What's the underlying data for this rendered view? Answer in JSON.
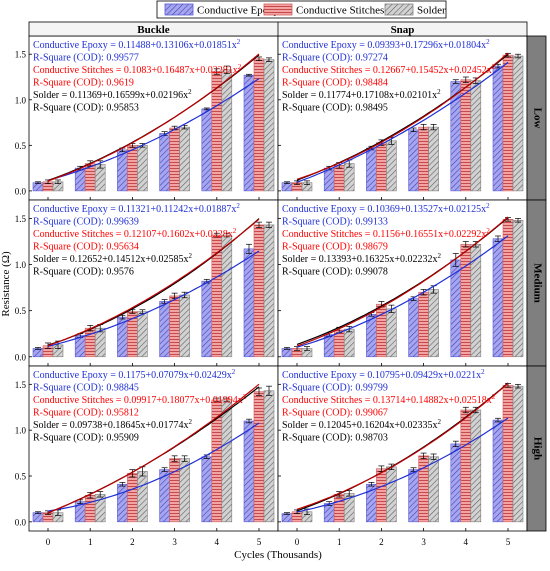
{
  "chart_data": {
    "type": "bar",
    "legend": {
      "placement": "top",
      "entries": [
        {
          "label": "Conductive Epoxy",
          "color": "#8f8fe6",
          "hatch": "diagonal"
        },
        {
          "label": "Conductive Stitches",
          "color": "#ef8e8e",
          "hatch": "horizontal"
        },
        {
          "label": "Solder",
          "color": "#c4c4c4",
          "hatch": "diagonal"
        }
      ]
    },
    "columns": [
      "Buckle",
      "Snap"
    ],
    "rows": [
      "Low",
      "Medium",
      "High"
    ],
    "categories": [
      "0",
      "1",
      "2",
      "3",
      "4",
      "5"
    ],
    "xlabel": "Cycles (Thousands)",
    "ylabel": "Resistance (Ω)",
    "ylim": [
      -0.1,
      1.7
    ],
    "yticks": [
      "0.0",
      "0.5",
      "1.0",
      "1.5"
    ],
    "ytick_values": [
      0,
      0.5,
      1.0,
      1.5
    ],
    "fit_colors": {
      "epoxy": "#1f2fd6",
      "stitches": "#c00000",
      "solder": "#000000"
    },
    "annotation_colors": {
      "epoxy": "#1f2fd6",
      "stitches": "#ff0000",
      "solder": "#000000"
    },
    "panels": [
      {
        "column": "Buckle",
        "row": "Low",
        "series": [
          {
            "name": "Conductive Epoxy",
            "values": [
              0.09,
              0.25,
              0.45,
              0.63,
              0.9,
              1.27
            ],
            "errors": [
              0.01,
              0.02,
              0.02,
              0.02,
              0.01,
              0.01
            ],
            "fit": [
              0.11488,
              0.13106,
              0.01851
            ]
          },
          {
            "name": "Conductive Stitches",
            "values": [
              0.1,
              0.3,
              0.5,
              0.69,
              1.31,
              1.45
            ],
            "errors": [
              0.02,
              0.03,
              0.02,
              0.02,
              0.03,
              0.02
            ],
            "fit": [
              0.1083,
              0.16487,
              0.02281
            ]
          },
          {
            "name": "Solder",
            "values": [
              0.1,
              0.29,
              0.5,
              0.7,
              1.33,
              1.44
            ],
            "errors": [
              0.02,
              0.04,
              0.02,
              0.02,
              0.04,
              0.02
            ],
            "fit": [
              0.11369,
              0.16599,
              0.02196
            ]
          }
        ],
        "equations": [
          {
            "key": "epoxy",
            "eq": "Conductive Epoxy = 0.11488+0.13106x+0.01851x",
            "r2": "R-Square (COD): 0.99577"
          },
          {
            "key": "stitches",
            "eq": "Conductive Stitches = 0.1083+0.16487x+0.02281x",
            "r2": "R-Square (COD): 0.9619"
          },
          {
            "key": "solder",
            "eq": "Solder = 0.11369+0.16599x+0.02196x",
            "r2": "R-Square (COD): 0.95853"
          }
        ]
      },
      {
        "column": "Snap",
        "row": "Low",
        "series": [
          {
            "name": "Conductive Epoxy",
            "values": [
              0.09,
              0.25,
              0.47,
              0.67,
              1.2,
              1.37
            ],
            "errors": [
              0.01,
              0.02,
              0.02,
              0.02,
              0.02,
              0.02
            ],
            "fit": [
              0.09393,
              0.17296,
              0.01804
            ]
          },
          {
            "name": "Conductive Stitches",
            "values": [
              0.09,
              0.28,
              0.53,
              0.7,
              1.22,
              1.49
            ],
            "errors": [
              0.02,
              0.03,
              0.03,
              0.03,
              0.03,
              0.02
            ],
            "fit": [
              0.12667,
              0.15452,
              0.02452
            ]
          },
          {
            "name": "Solder",
            "values": [
              0.09,
              0.3,
              0.55,
              0.7,
              1.21,
              1.48
            ],
            "errors": [
              0.02,
              0.04,
              0.04,
              0.03,
              0.03,
              0.02
            ],
            "fit": [
              0.11774,
              0.17108,
              0.02101
            ]
          }
        ],
        "equations": [
          {
            "key": "epoxy",
            "eq": "Conductive Epoxy = 0.09393+0.17296x+0.01804x",
            "r2": "R-Square (COD): 0.97274"
          },
          {
            "key": "stitches",
            "eq": "Conductive Stitches = 0.12667+0.15452x+0.02452x",
            "r2": "R-Square (COD): 0.98484"
          },
          {
            "key": "solder",
            "eq": "Solder = 0.11774+0.17108x+0.02101x",
            "r2": "R-Square (COD): 0.98495"
          }
        ]
      },
      {
        "column": "Buckle",
        "row": "Medium",
        "series": [
          {
            "name": "Conductive Epoxy",
            "values": [
              0.09,
              0.23,
              0.43,
              0.6,
              0.82,
              1.17
            ],
            "errors": [
              0.01,
              0.02,
              0.02,
              0.02,
              0.02,
              0.05
            ],
            "fit": [
              0.11321,
              0.11242,
              0.01887
            ]
          },
          {
            "name": "Conductive Stitches",
            "values": [
              0.12,
              0.31,
              0.49,
              0.66,
              1.32,
              1.43
            ],
            "errors": [
              0.03,
              0.03,
              0.02,
              0.03,
              0.02,
              0.03
            ],
            "fit": [
              0.12107,
              0.1602,
              0.0228
            ]
          },
          {
            "name": "Solder",
            "values": [
              0.13,
              0.31,
              0.49,
              0.67,
              1.32,
              1.43
            ],
            "errors": [
              0.04,
              0.04,
              0.02,
              0.03,
              0.02,
              0.03
            ],
            "fit": [
              0.12652,
              0.14512,
              0.02585
            ]
          }
        ],
        "equations": [
          {
            "key": "epoxy",
            "eq": "Conductive Epoxy = 0.11321+0.11242x+0.01887x",
            "r2": "R-Square (COD): 0.99639"
          },
          {
            "key": "stitches",
            "eq": "Conductive Stitches = 0.12107+0.1602x+0.0228x",
            "r2": "R-Square (COD): 0.95634"
          },
          {
            "key": "solder",
            "eq": "Solder = 0.12652+0.14512x+0.02585x",
            "r2": "R-Square (COD): 0.9576"
          }
        ]
      },
      {
        "column": "Snap",
        "row": "Medium",
        "series": [
          {
            "name": "Conductive Epoxy",
            "values": [
              0.09,
              0.24,
              0.46,
              0.63,
              1.05,
              1.28
            ],
            "errors": [
              0.01,
              0.02,
              0.02,
              0.02,
              0.07,
              0.03
            ],
            "fit": [
              0.10369,
              0.13527,
              0.02125
            ]
          },
          {
            "name": "Conductive Stitches",
            "values": [
              0.09,
              0.29,
              0.57,
              0.7,
              1.22,
              1.49
            ],
            "errors": [
              0.02,
              0.03,
              0.03,
              0.03,
              0.03,
              0.02
            ],
            "fit": [
              0.1156,
              0.16551,
              0.02292
            ]
          },
          {
            "name": "Solder",
            "values": [
              0.09,
              0.3,
              0.52,
              0.73,
              1.22,
              1.48
            ],
            "errors": [
              0.02,
              0.03,
              0.04,
              0.04,
              0.03,
              0.02
            ],
            "fit": [
              0.13393,
              0.16325,
              0.02232
            ]
          }
        ],
        "equations": [
          {
            "key": "epoxy",
            "eq": "Conductive Epoxy = 0.10369+0.13527x+0.02125x",
            "r2": "R-Square (COD): 0.99133"
          },
          {
            "key": "stitches",
            "eq": "Conductive Stitches = 0.1156+0.16551x+0.02292x",
            "r2": "R-Square (COD): 0.98679"
          },
          {
            "key": "solder",
            "eq": "Solder = 0.13393+0.16325x+0.02232x",
            "r2": "R-Square (COD): 0.99078"
          }
        ]
      },
      {
        "column": "Buckle",
        "row": "High",
        "series": [
          {
            "name": "Conductive Epoxy",
            "values": [
              0.1,
              0.22,
              0.41,
              0.57,
              0.71,
              1.1
            ],
            "errors": [
              0.01,
              0.02,
              0.02,
              0.02,
              0.02,
              0.02
            ],
            "fit": [
              0.1175,
              0.07079,
              0.02429
            ]
          },
          {
            "name": "Conductive Stitches",
            "values": [
              0.1,
              0.29,
              0.53,
              0.69,
              1.33,
              1.42
            ],
            "errors": [
              0.02,
              0.03,
              0.04,
              0.03,
              0.02,
              0.04
            ],
            "fit": [
              0.09917,
              0.18077,
              0.01994
            ]
          },
          {
            "name": "Solder",
            "values": [
              0.1,
              0.3,
              0.55,
              0.69,
              1.33,
              1.43
            ],
            "errors": [
              0.03,
              0.03,
              0.05,
              0.03,
              0.02,
              0.05
            ],
            "fit": [
              0.09738,
              0.18645,
              0.01774
            ]
          }
        ],
        "equations": [
          {
            "key": "epoxy",
            "eq": "Conductive Epoxy = 0.1175+0.07079x+0.02429x",
            "r2": "R-Square (COD): 0.98845"
          },
          {
            "key": "stitches",
            "eq": "Conductive Stitches = 0.09917+0.18077x+0.01994x",
            "r2": "R-Square (COD): 0.95812"
          },
          {
            "key": "solder",
            "eq": "Solder = 0.09738+0.18645x+0.01774x",
            "r2": "R-Square (COD): 0.95909"
          }
        ]
      },
      {
        "column": "Snap",
        "row": "High",
        "series": [
          {
            "name": "Conductive Epoxy",
            "values": [
              0.09,
              0.2,
              0.41,
              0.57,
              0.85,
              1.11
            ],
            "errors": [
              0.01,
              0.02,
              0.02,
              0.02,
              0.03,
              0.02
            ],
            "fit": [
              0.10795,
              0.09429,
              0.0221
            ]
          },
          {
            "name": "Conductive Stitches",
            "values": [
              0.11,
              0.3,
              0.58,
              0.72,
              1.22,
              1.49
            ],
            "errors": [
              0.02,
              0.03,
              0.03,
              0.03,
              0.03,
              0.02
            ],
            "fit": [
              0.13714,
              0.14882,
              0.02518
            ]
          },
          {
            "name": "Solder",
            "values": [
              0.11,
              0.31,
              0.6,
              0.71,
              1.22,
              1.48
            ],
            "errors": [
              0.03,
              0.03,
              0.03,
              0.03,
              0.03,
              0.02
            ],
            "fit": [
              0.12045,
              0.16204,
              0.02335
            ]
          }
        ],
        "equations": [
          {
            "key": "epoxy",
            "eq": "Conductive Epoxy = 0.10795+0.09429x+0.0221x",
            "r2": "R-Square (COD): 0.99799"
          },
          {
            "key": "stitches",
            "eq": "Conductive Stitches = 0.13714+0.14882x+0.02518x",
            "r2": "R-Square (COD): 0.99067"
          },
          {
            "key": "solder",
            "eq": "Solder = 0.12045+0.16204x+0.02335x",
            "r2": "R-Square (COD): 0.98703"
          }
        ]
      }
    ]
  }
}
